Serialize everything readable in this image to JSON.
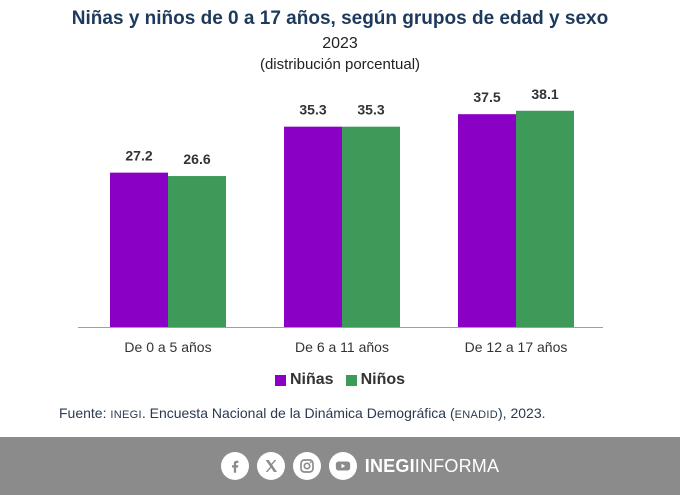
{
  "chart_data": {
    "type": "bar",
    "title": "Niñas y niños de 0 a 17 años, según grupos de edad y sexo",
    "subtitle": "2023",
    "unit_label": "(distribución porcentual)",
    "categories": [
      "De 0 a 5 años",
      "De 6 a 11 años",
      "De 12 a 17 años"
    ],
    "series": [
      {
        "name": "Niñas",
        "color": "#8a00c4",
        "values": [
          27.2,
          35.3,
          37.5
        ]
      },
      {
        "name": "Niños",
        "color": "#3d9a59",
        "values": [
          26.6,
          35.3,
          38.1
        ]
      }
    ],
    "ylim": [
      0,
      40
    ],
    "xlabel": "",
    "ylabel": "",
    "grid": false,
    "legend": "bottom-center"
  },
  "source": {
    "prefix": "Fuente: ",
    "org": "INEGI",
    "middle": ". Encuesta Nacional de la Dinámica Demográfica (",
    "survey": "ENADID",
    "suffix": "), 2023."
  },
  "footer": {
    "social_icons": [
      "facebook-icon",
      "x-icon",
      "instagram-icon",
      "youtube-icon"
    ],
    "brand_bold": "INEGI",
    "brand_light": "INFORMA",
    "background": "#8b8b8b"
  }
}
